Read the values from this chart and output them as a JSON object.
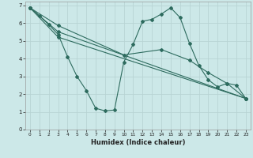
{
  "xlabel": "Humidex (Indice chaleur)",
  "bg_color": "#cce8e8",
  "grid_color": "#b8d4d4",
  "line_color": "#2d6b5e",
  "xlim": [
    -0.5,
    23.5
  ],
  "ylim": [
    0,
    7.2
  ],
  "xticks": [
    0,
    1,
    2,
    3,
    4,
    5,
    6,
    7,
    8,
    9,
    10,
    11,
    12,
    13,
    14,
    15,
    16,
    17,
    18,
    19,
    20,
    21,
    22,
    23
  ],
  "yticks": [
    0,
    1,
    2,
    3,
    4,
    5,
    6,
    7
  ],
  "line1_x": [
    0,
    1,
    2,
    3,
    4,
    5,
    6,
    7,
    8,
    9,
    10,
    11,
    12,
    13,
    14,
    15,
    16,
    17,
    18,
    19,
    20,
    21,
    22,
    23
  ],
  "line1_y": [
    6.85,
    6.4,
    5.9,
    5.35,
    4.1,
    3.0,
    2.2,
    1.2,
    1.05,
    1.1,
    3.8,
    4.8,
    6.1,
    6.2,
    6.5,
    6.85,
    6.3,
    4.85,
    3.6,
    2.8,
    2.4,
    2.6,
    2.5,
    1.75
  ],
  "line2_x": [
    0,
    3,
    23
  ],
  "line2_y": [
    6.85,
    5.5,
    1.75
  ],
  "line3_x": [
    0,
    3,
    23
  ],
  "line3_y": [
    6.85,
    5.2,
    1.75
  ],
  "line4_x": [
    0,
    3,
    10,
    14,
    17,
    19,
    21,
    23
  ],
  "line4_y": [
    6.85,
    5.85,
    4.2,
    4.5,
    3.9,
    3.2,
    2.6,
    1.75
  ]
}
